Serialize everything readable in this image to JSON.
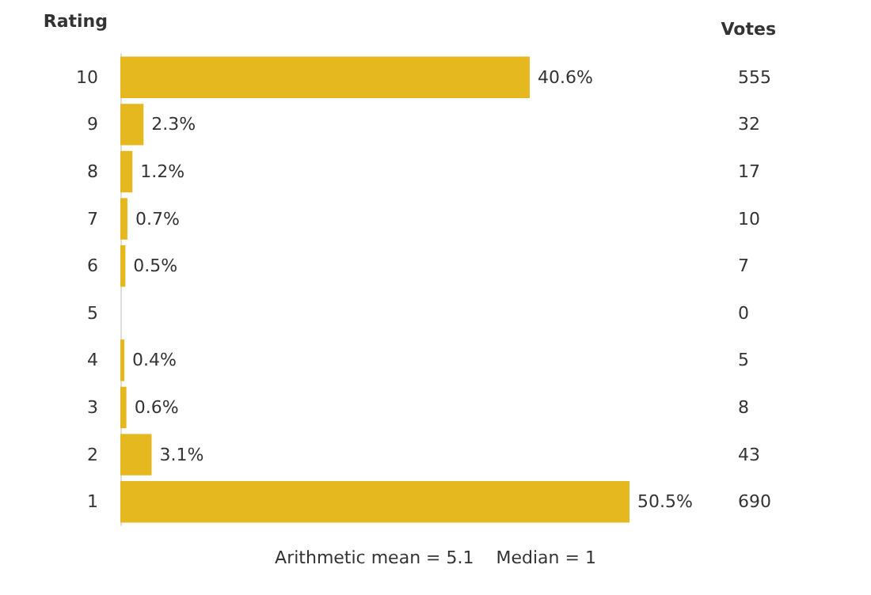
{
  "chart_data": {
    "type": "bar",
    "orientation": "horizontal",
    "ylabel": "Rating",
    "categories": [
      "10",
      "9",
      "8",
      "7",
      "6",
      "5",
      "4",
      "3",
      "2",
      "1"
    ],
    "y2_categories": [
      "555",
      "32",
      "17",
      "10",
      "7",
      "0",
      "5",
      "8",
      "43",
      "690"
    ],
    "values": [
      40.6,
      2.3,
      1.2,
      0.7,
      0.5,
      0,
      0.4,
      0.6,
      3.1,
      50.5
    ],
    "value_labels": [
      "40.6%",
      "2.3%",
      "1.2%",
      "0.7%",
      "0.5%",
      null,
      "0.4%",
      "0.6%",
      "3.1%",
      "50.5%"
    ],
    "color": "#e6b820",
    "annotations": [
      "Votes",
      "Arithmetic mean = 5.1    Median = 1"
    ]
  }
}
